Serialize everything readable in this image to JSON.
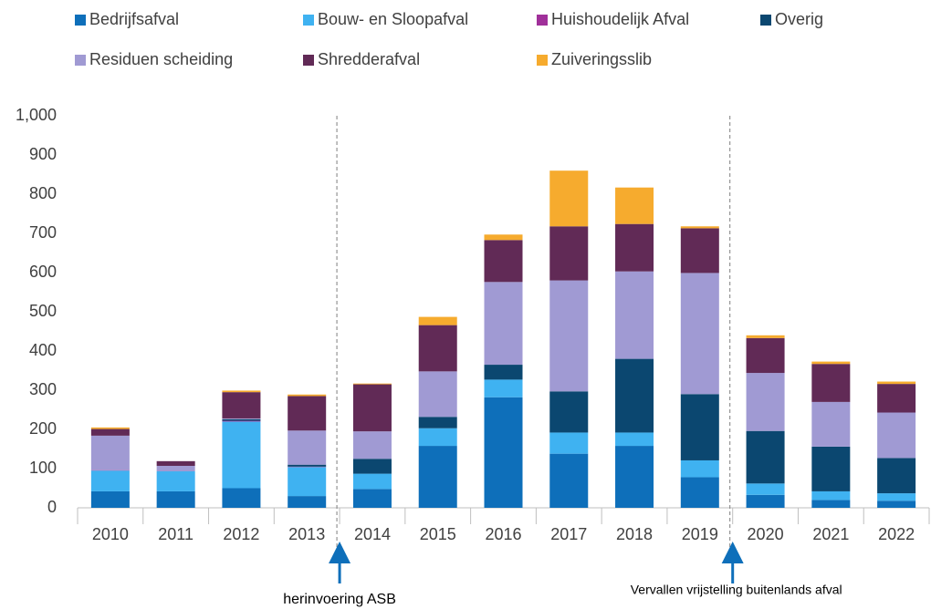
{
  "chart_data": {
    "type": "stacked_bar",
    "categories": [
      "2010",
      "2011",
      "2012",
      "2013",
      "2014",
      "2015",
      "2016",
      "2017",
      "2018",
      "2019",
      "2020",
      "2021",
      "2022"
    ],
    "series": [
      {
        "name": "Bedrijfsafval",
        "color": "#0e6fba",
        "values": [
          42,
          42,
          50,
          30,
          48,
          158,
          282,
          138,
          158,
          78,
          33,
          20,
          18
        ]
      },
      {
        "name": "Bouw- en Sloopafval",
        "color": "#3fb2f1",
        "values": [
          53,
          51,
          170,
          74,
          39,
          45,
          45,
          54,
          34,
          43,
          29,
          22,
          19
        ]
      },
      {
        "name": "Huishoudelijk Afval",
        "color": "#a0309a",
        "values": [
          1,
          0,
          2,
          1,
          0,
          0,
          0,
          0,
          0,
          0,
          0,
          0,
          0
        ]
      },
      {
        "name": "Overig",
        "color": "#0b4770",
        "values": [
          0,
          0,
          4,
          5,
          38,
          29,
          38,
          105,
          188,
          169,
          134,
          114,
          90
        ]
      },
      {
        "name": "Residuen scheiding",
        "color": "#a09ad3",
        "values": [
          88,
          14,
          2,
          87,
          70,
          116,
          211,
          283,
          223,
          309,
          148,
          114,
          116
        ]
      },
      {
        "name": "Shredderafval",
        "color": "#612a56",
        "values": [
          17,
          12,
          67,
          88,
          120,
          118,
          107,
          138,
          121,
          114,
          89,
          97,
          73
        ]
      },
      {
        "name": "Zuiveringsslib",
        "color": "#f6ab2e",
        "values": [
          4,
          0,
          4,
          4,
          2,
          21,
          14,
          142,
          93,
          5,
          7,
          6,
          6
        ]
      }
    ],
    "ylim": [
      0,
      1000
    ],
    "yticks": [
      0,
      100,
      200,
      300,
      400,
      500,
      600,
      700,
      800,
      900,
      {
        "value": 1000,
        "label": "1,000"
      }
    ],
    "annotations": [
      "herinvoering ASB",
      "Vervallen vrijstelling buitenlands afval"
    ]
  }
}
